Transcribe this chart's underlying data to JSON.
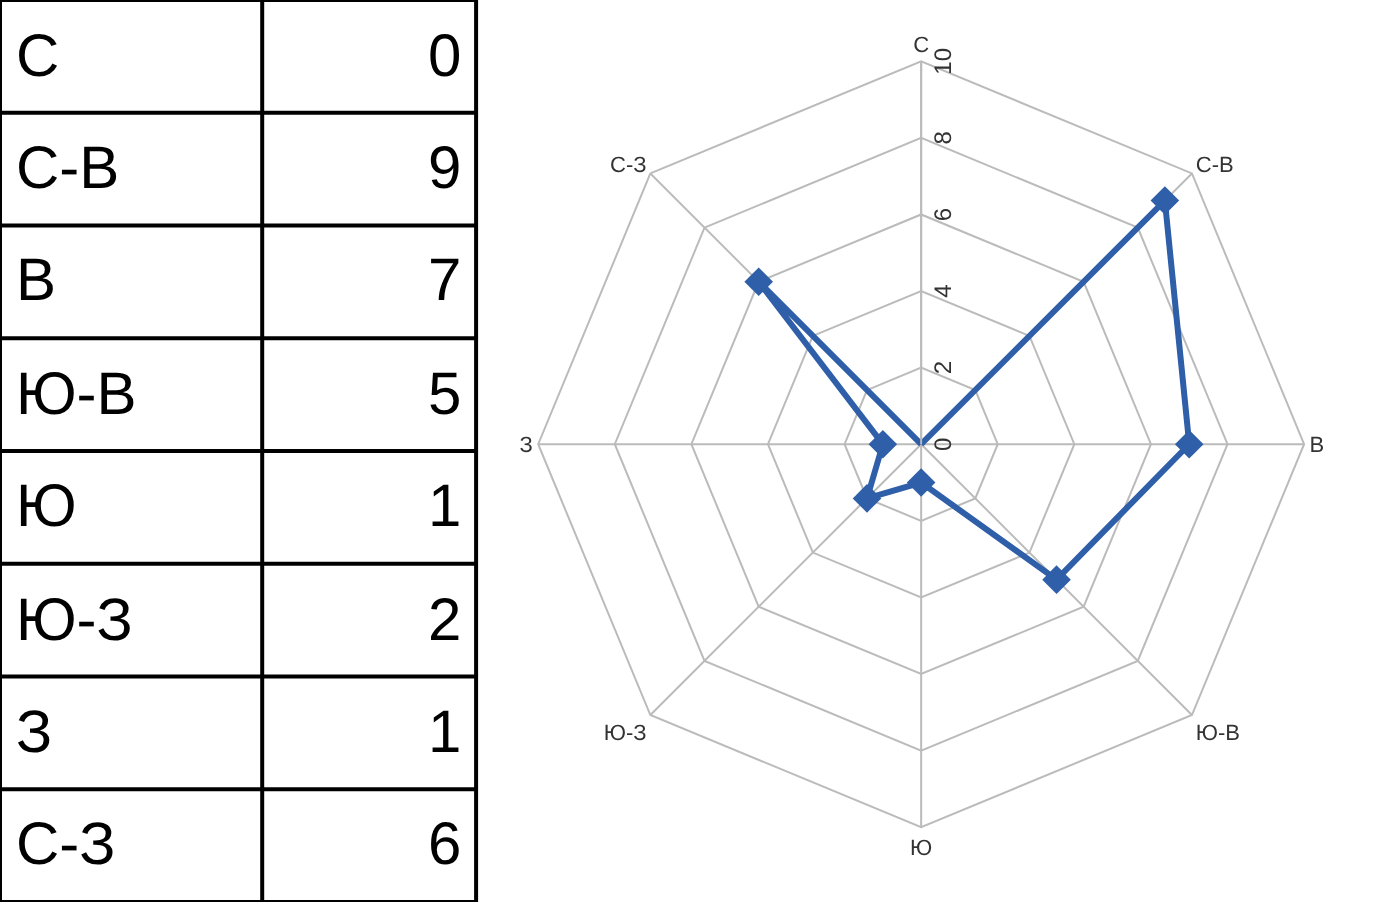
{
  "chart_data": [
    {
      "type": "other",
      "categories": [
        "С",
        "С-В",
        "В",
        "Ю-В",
        "Ю",
        "Ю-З",
        "З",
        "С-З"
      ],
      "value_labels": [
        "0",
        "9",
        "7",
        "5",
        "1",
        "2",
        "1",
        "6"
      ]
    },
    {
      "type": "radar",
      "categories": [
        "С",
        "С-В",
        "В",
        "Ю-В",
        "Ю",
        "Ю-З",
        "З",
        "С-З"
      ],
      "series": [
        {
          "color": "#2e5fa8",
          "values": [
            0,
            9,
            7,
            5,
            1,
            2,
            1,
            6
          ]
        }
      ],
      "ylim": [
        0,
        10
      ],
      "yticks": [
        0,
        2,
        4,
        6,
        8,
        10
      ],
      "grid": true,
      "marker": "diamond",
      "line_style": "solid"
    }
  ]
}
